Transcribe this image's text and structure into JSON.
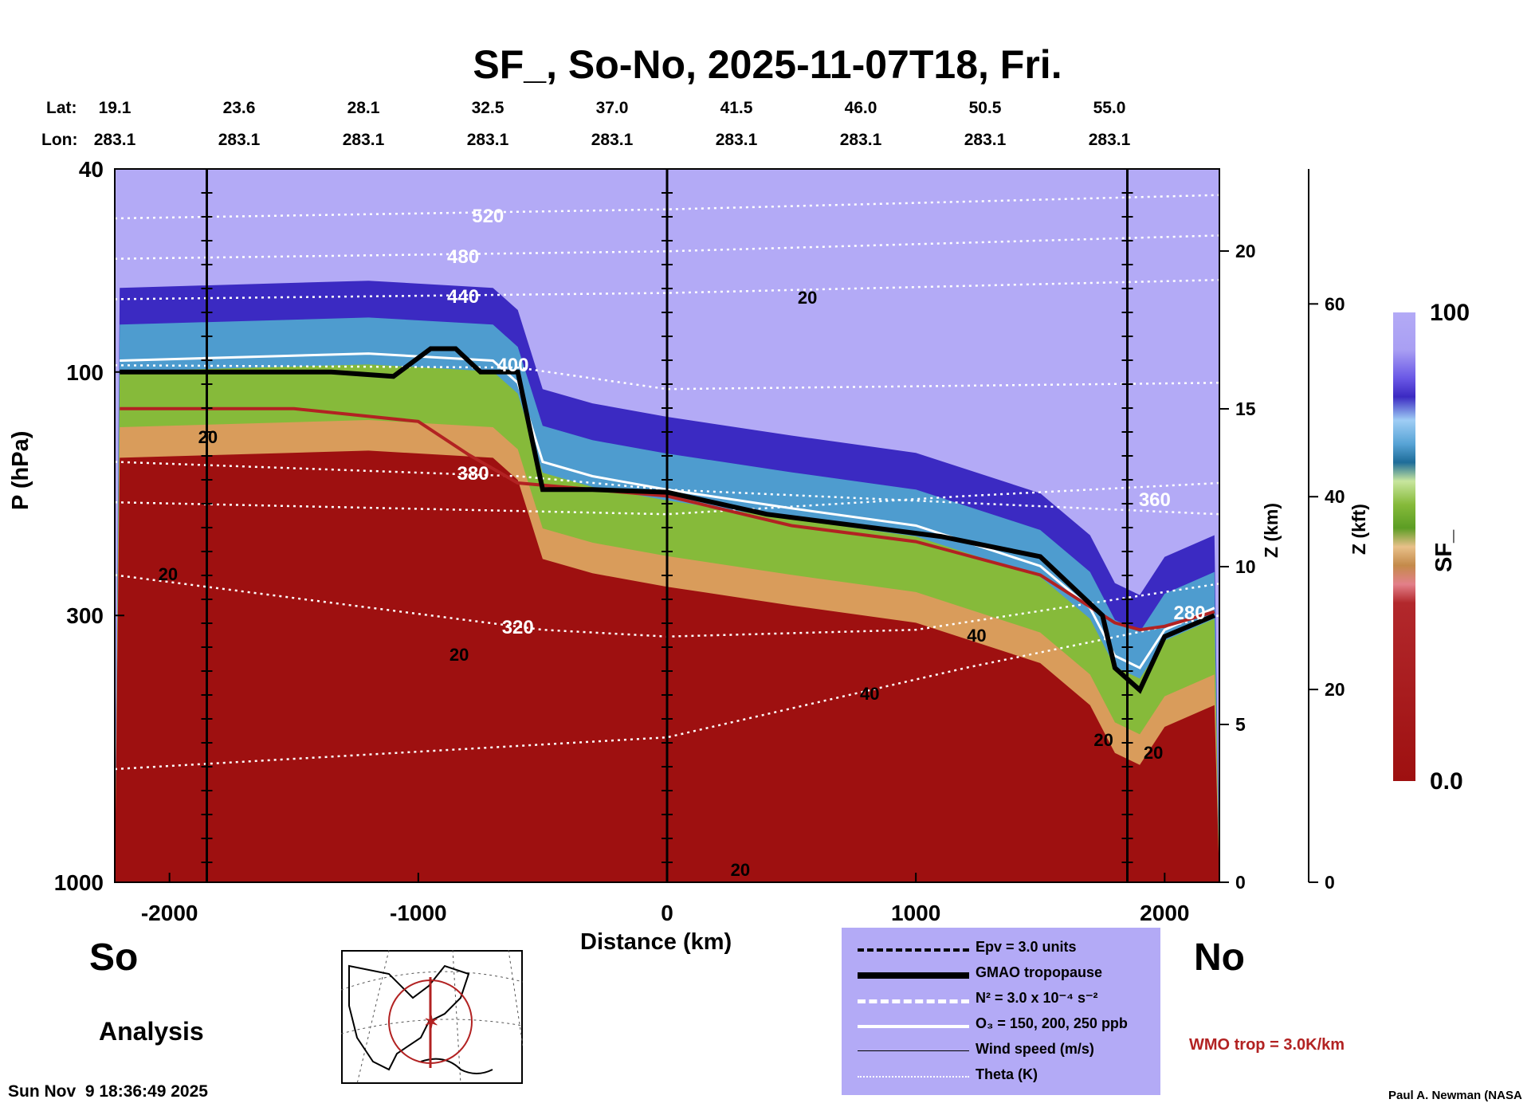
{
  "title": "SF_, So-No, 2025-11-07T18, Fri.",
  "header": {
    "lat_label": "Lat:",
    "lon_label": "Lon:",
    "lats": [
      "19.1",
      "23.6",
      "28.1",
      "32.5",
      "37.0",
      "41.5",
      "46.0",
      "50.5",
      "55.0"
    ],
    "lons": [
      "283.1",
      "283.1",
      "283.1",
      "283.1",
      "283.1",
      "283.1",
      "283.1",
      "283.1",
      "283.1"
    ]
  },
  "chart_data": {
    "type": "heatmap",
    "title": "SF_, So-No, 2025-11-07T18, Fri.",
    "xlabel": "Distance (km)",
    "ylabel": "P (hPa)",
    "x_range": [
      -2220,
      2220
    ],
    "x_ticks": [
      -2000,
      -1000,
      0,
      1000,
      2000
    ],
    "x_tick_labels": [
      "-2000",
      "-1000",
      "0",
      "1000",
      "2000"
    ],
    "y_scale": "log",
    "y_range": [
      1000,
      40
    ],
    "y_ticks": [
      1000,
      300,
      100,
      40
    ],
    "y_tick_labels": [
      "1000",
      "300",
      "100",
      "40"
    ],
    "z_km_ticks": [
      0,
      5,
      10,
      15,
      20
    ],
    "z_km_labels": [
      "0",
      "5",
      "10",
      "15",
      "20"
    ],
    "z_km_title": "Z (km)",
    "z_kft_ticks": [
      0,
      20,
      40,
      60
    ],
    "z_kft_labels": [
      "0",
      "20",
      "40",
      "60"
    ],
    "z_kft_title": "Z (kft)",
    "colorbar": {
      "label": "SF_",
      "min_label": "0.0",
      "max_label": "100",
      "min": 0,
      "max": 100
    },
    "vertical_markers_km": [
      -1850,
      0,
      1850
    ],
    "gmao_tropopause": [
      [
        -2200,
        100
      ],
      [
        -1350,
        100
      ],
      [
        -1100,
        102
      ],
      [
        -950,
        90
      ],
      [
        -850,
        90
      ],
      [
        -750,
        100
      ],
      [
        -600,
        100
      ],
      [
        -500,
        170
      ],
      [
        -300,
        170
      ],
      [
        0,
        172
      ],
      [
        400,
        190
      ],
      [
        1100,
        210
      ],
      [
        1500,
        230
      ],
      [
        1750,
        300
      ],
      [
        1800,
        380
      ],
      [
        1900,
        420
      ],
      [
        2000,
        330
      ],
      [
        2200,
        300
      ]
    ],
    "wmo_tropopause": [
      [
        -2200,
        118
      ],
      [
        -1500,
        118
      ],
      [
        -1000,
        125
      ],
      [
        -800,
        145
      ],
      [
        -600,
        165
      ],
      [
        0,
        175
      ],
      [
        500,
        200
      ],
      [
        1000,
        215
      ],
      [
        1500,
        250
      ],
      [
        1800,
        310
      ],
      [
        1900,
        320
      ],
      [
        2000,
        315
      ],
      [
        2200,
        295
      ]
    ],
    "ozone_contour": [
      [
        -2200,
        95
      ],
      [
        -1200,
        92
      ],
      [
        -700,
        95
      ],
      [
        -600,
        105
      ],
      [
        -500,
        150
      ],
      [
        -300,
        160
      ],
      [
        0,
        170
      ],
      [
        500,
        185
      ],
      [
        1000,
        200
      ],
      [
        1500,
        240
      ],
      [
        1700,
        290
      ],
      [
        1800,
        360
      ],
      [
        1900,
        380
      ],
      [
        2000,
        320
      ],
      [
        2200,
        290
      ]
    ],
    "theta_levels": [
      {
        "label": "520",
        "points": [
          [
            -2220,
            50
          ],
          [
            0,
            48
          ],
          [
            2220,
            45
          ]
        ]
      },
      {
        "label": "480",
        "points": [
          [
            -2220,
            60
          ],
          [
            0,
            58
          ],
          [
            2220,
            54
          ]
        ]
      },
      {
        "label": "440",
        "points": [
          [
            -2220,
            72
          ],
          [
            0,
            70
          ],
          [
            2220,
            66
          ]
        ]
      },
      {
        "label": "400",
        "points": [
          [
            -2220,
            97
          ],
          [
            -600,
            98
          ],
          [
            0,
            108
          ],
          [
            2220,
            105
          ]
        ]
      },
      {
        "label": "380",
        "points": [
          [
            -2220,
            150
          ],
          [
            -600,
            160
          ],
          [
            0,
            170
          ],
          [
            2220,
            190
          ]
        ]
      },
      {
        "label": "360",
        "points": [
          [
            -2220,
            180
          ],
          [
            0,
            190
          ],
          [
            1200,
            175
          ],
          [
            2220,
            165
          ]
        ]
      },
      {
        "label": "320",
        "points": [
          [
            -2220,
            250
          ],
          [
            -500,
            320
          ],
          [
            0,
            330
          ],
          [
            1000,
            320
          ],
          [
            2220,
            260
          ]
        ]
      },
      {
        "label": "280",
        "points": [
          [
            -2220,
            600
          ],
          [
            0,
            520
          ],
          [
            1200,
            380
          ],
          [
            2220,
            300
          ]
        ]
      }
    ],
    "theta_labels": [
      "520",
      "480",
      "440",
      "400",
      "380",
      "360",
      "320",
      "280"
    ],
    "wind_labels": [
      "20",
      "20",
      "20",
      "20",
      "40",
      "40",
      "20",
      "20",
      "20"
    ]
  },
  "side_labels": {
    "south": "So",
    "north": "No"
  },
  "analysis_label": "Analysis",
  "legend": {
    "epv": "Epv = 3.0 units",
    "tropopause": "GMAO tropopause",
    "n2": "N² = 3.0 x 10⁻⁴ s⁻²",
    "o3": "O₃ = 150, 200, 250 ppb",
    "wind": "Wind speed (m/s)",
    "theta": "Theta (K)"
  },
  "wmo_label": "WMO trop = 3.0K/km",
  "footer": {
    "timestamp": "Sun Nov  9 18:36:49 2025",
    "credit": "Paul A. Newman (NASA"
  },
  "colors": {
    "stratosphere": "#b3aaf6",
    "troposphere": "#9e1010",
    "wmo_line": "#b22222",
    "legend_bg": "#b3aaf6"
  }
}
